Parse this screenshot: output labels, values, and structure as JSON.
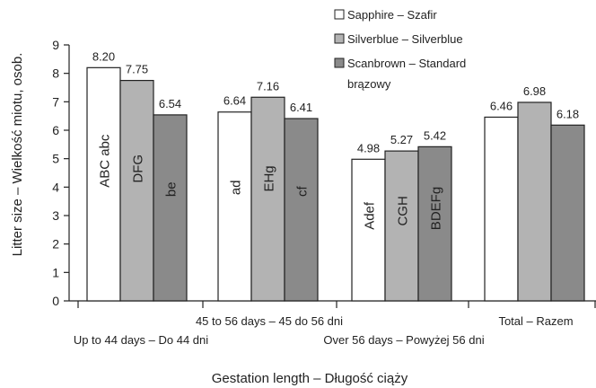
{
  "chart_data": {
    "type": "bar",
    "title": "",
    "xlabel": "Gestation length – Długość ciąży",
    "ylabel": "Litter size – Wielkość miotu, osob.",
    "ylim": [
      0,
      9
    ],
    "yticks": [
      "0",
      "1",
      "2",
      "3",
      "4",
      "5",
      "6",
      "7",
      "8",
      "9"
    ],
    "categories": [
      "Up to 44 days – Do 44 dni",
      "45 to 56 days – 45 do 56 dni",
      "Over 56 days – Powyżej 56 dni",
      "Total – Razem"
    ],
    "series": [
      {
        "name": "Sapphire – Szafir",
        "color": "#ffffff",
        "values": [
          8.2,
          6.64,
          4.98,
          6.46
        ],
        "value_labels": [
          "8.20",
          "6.64",
          "4.98",
          "6.46"
        ],
        "letters": [
          "ABC abc",
          "ad",
          "Adef",
          ""
        ]
      },
      {
        "name": "Silverblue – Silverblue",
        "color": "#b3b3b3",
        "values": [
          7.75,
          7.16,
          5.27,
          6.98
        ],
        "value_labels": [
          "7.75",
          "7.16",
          "5.27",
          "6.98"
        ],
        "letters": [
          "DFG",
          "EHg",
          "CGH",
          ""
        ]
      },
      {
        "name": "Scanbrown – Standard brązowy",
        "legend_lines": [
          "Scanbrown – Standard",
          "brązowy"
        ],
        "color": "#8a8a8a",
        "values": [
          6.54,
          6.41,
          5.42,
          6.18
        ],
        "value_labels": [
          "6.54",
          "6.41",
          "5.42",
          "6.18"
        ],
        "letters": [
          "be",
          "cf",
          "BDEFg",
          ""
        ]
      }
    ],
    "legend_position": "top-right",
    "grid": false
  }
}
